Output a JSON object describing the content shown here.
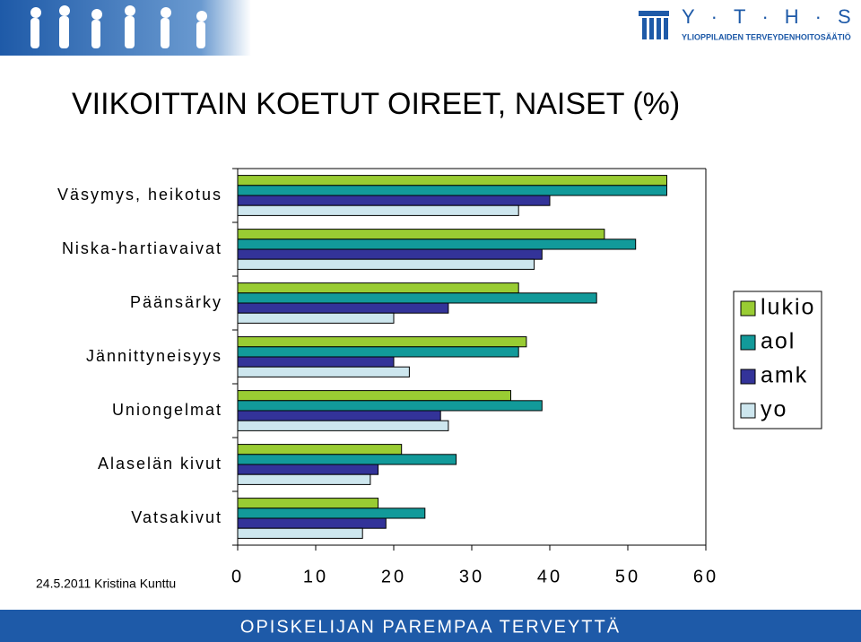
{
  "header": {
    "logo": "Y·T·H·S",
    "logo_subtitle": "YLIOPPILAIDEN TERVEYDENHOITOSÄÄTIÖ"
  },
  "chart_data": {
    "type": "hbar",
    "title": "VIIKOITTAIN KOETUT OIREET, NAISET (%)",
    "categories": [
      "Väsymys, heikotus",
      "Niska-hartiavaivat",
      "Päänsärky",
      "Jännittyneisyys",
      "Uniongelmat",
      "Alaselän kivut",
      "Vatsakivut"
    ],
    "series": [
      {
        "name": "lukio",
        "color": "#99cc33",
        "values": [
          55,
          47,
          36,
          37,
          35,
          21,
          18
        ]
      },
      {
        "name": "aol",
        "color": "#129a9a",
        "values": [
          55,
          51,
          46,
          36,
          39,
          28,
          24
        ]
      },
      {
        "name": "amk",
        "color": "#333399",
        "values": [
          40,
          39,
          27,
          20,
          26,
          18,
          19
        ]
      },
      {
        "name": "yo",
        "color": "#cde6ee",
        "values": [
          36,
          38,
          20,
          22,
          27,
          17,
          16
        ]
      }
    ],
    "xlim": [
      0,
      60
    ],
    "xticks": [
      0,
      10,
      20,
      30,
      40,
      50,
      60
    ],
    "grid": false,
    "legend": "right"
  },
  "footer": {
    "date_author": "24.5.2011 Kristina Kunttu",
    "slogan": "OPISKELIJAN PAREMPAA TERVEYTTÄ"
  }
}
